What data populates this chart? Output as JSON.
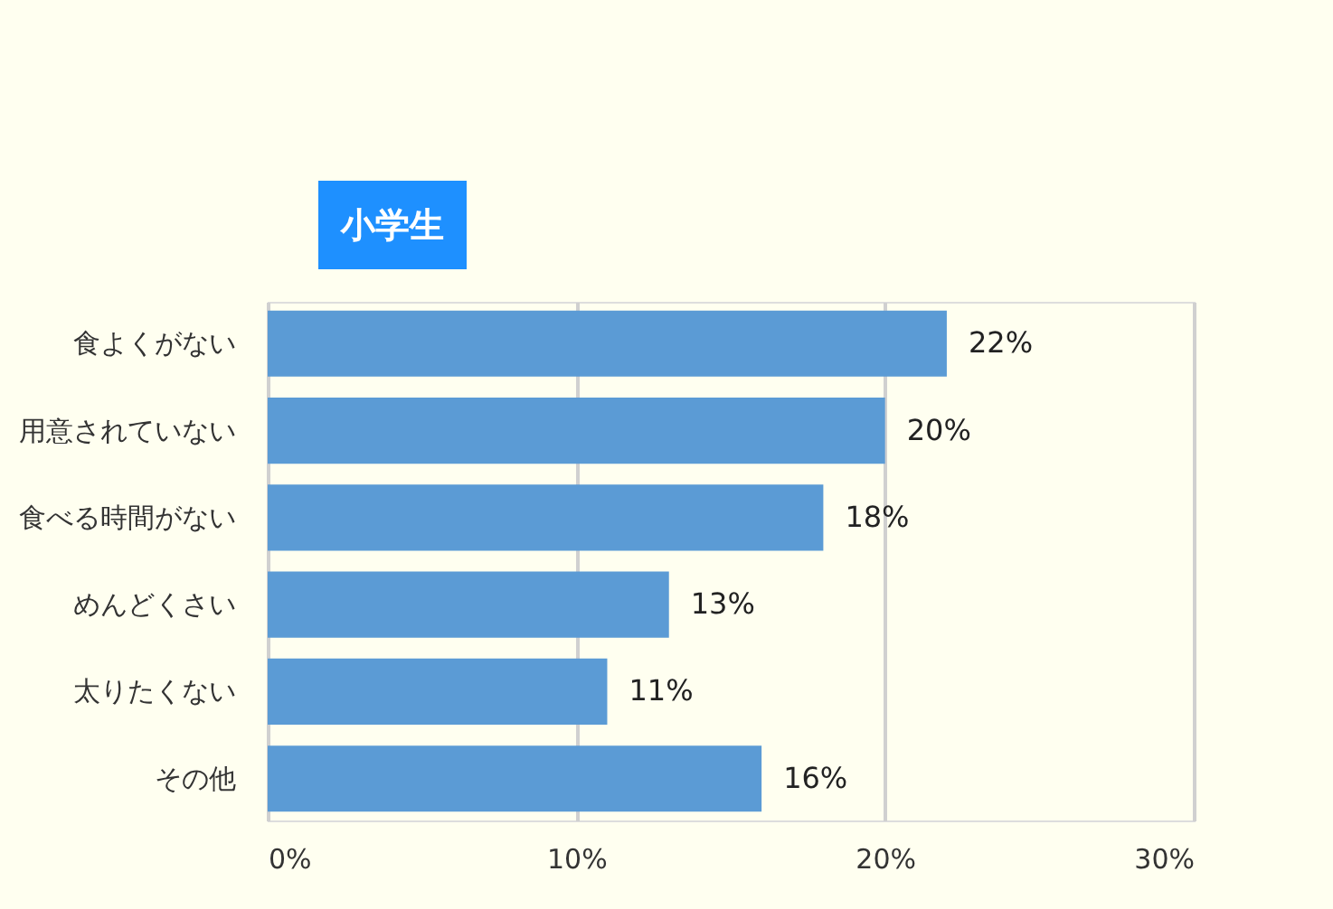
{
  "chart_data": {
    "type": "bar",
    "orientation": "horizontal",
    "title": "小学生",
    "categories": [
      "食よくがない",
      "用意されていない",
      "食べる時間がない",
      "めんどくさい",
      "太りたくない",
      "その他"
    ],
    "values": [
      22,
      20,
      18,
      13,
      11,
      16
    ],
    "value_labels": [
      "22%",
      "20%",
      "18%",
      "13%",
      "11%",
      "16%"
    ],
    "color": "#5b9bd5",
    "xlim": [
      0,
      30
    ],
    "xticks": [
      {
        "value": 0,
        "label": "0%"
      },
      {
        "value": 10,
        "label": "10%"
      },
      {
        "value": 20,
        "label": "20%"
      },
      {
        "value": 30,
        "label": "30%"
      }
    ],
    "grid": "x"
  }
}
